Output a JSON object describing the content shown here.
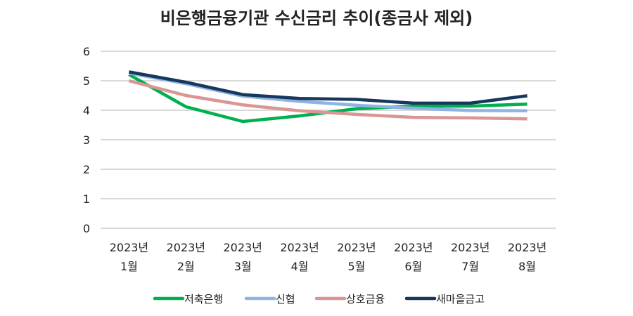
{
  "chart_data": {
    "type": "line",
    "title": "비은행금융기관 수신금리 추이(종금사 제외)",
    "xlabel": "",
    "ylabel": "",
    "ylim": [
      0,
      6
    ],
    "yticks": [
      "0",
      "1",
      "2",
      "3",
      "4",
      "5",
      "6"
    ],
    "grid": true,
    "legend_position": "bottom",
    "categories": [
      [
        "2023년",
        "1월"
      ],
      [
        "2023년",
        "2월"
      ],
      [
        "2023년",
        "3월"
      ],
      [
        "2023년",
        "4월"
      ],
      [
        "2023년",
        "5월"
      ],
      [
        "2023년",
        "6월"
      ],
      [
        "2023년",
        "7월"
      ],
      [
        "2023년",
        "8월"
      ]
    ],
    "series": [
      {
        "name": "저축은행",
        "color": "#00B050",
        "values": [
          5.21,
          4.12,
          3.62,
          3.81,
          4.05,
          4.14,
          4.14,
          4.21
        ]
      },
      {
        "name": "신협",
        "color": "#8EB4E3",
        "values": [
          5.26,
          4.9,
          4.48,
          4.3,
          4.17,
          4.07,
          3.99,
          3.98
        ]
      },
      {
        "name": "상호금융",
        "color": "#D99694",
        "values": [
          5.0,
          4.5,
          4.18,
          3.98,
          3.86,
          3.76,
          3.74,
          3.71
        ]
      },
      {
        "name": "새마을금고",
        "color": "#17375E",
        "values": [
          5.3,
          4.95,
          4.53,
          4.4,
          4.37,
          4.24,
          4.24,
          4.49
        ]
      }
    ]
  }
}
